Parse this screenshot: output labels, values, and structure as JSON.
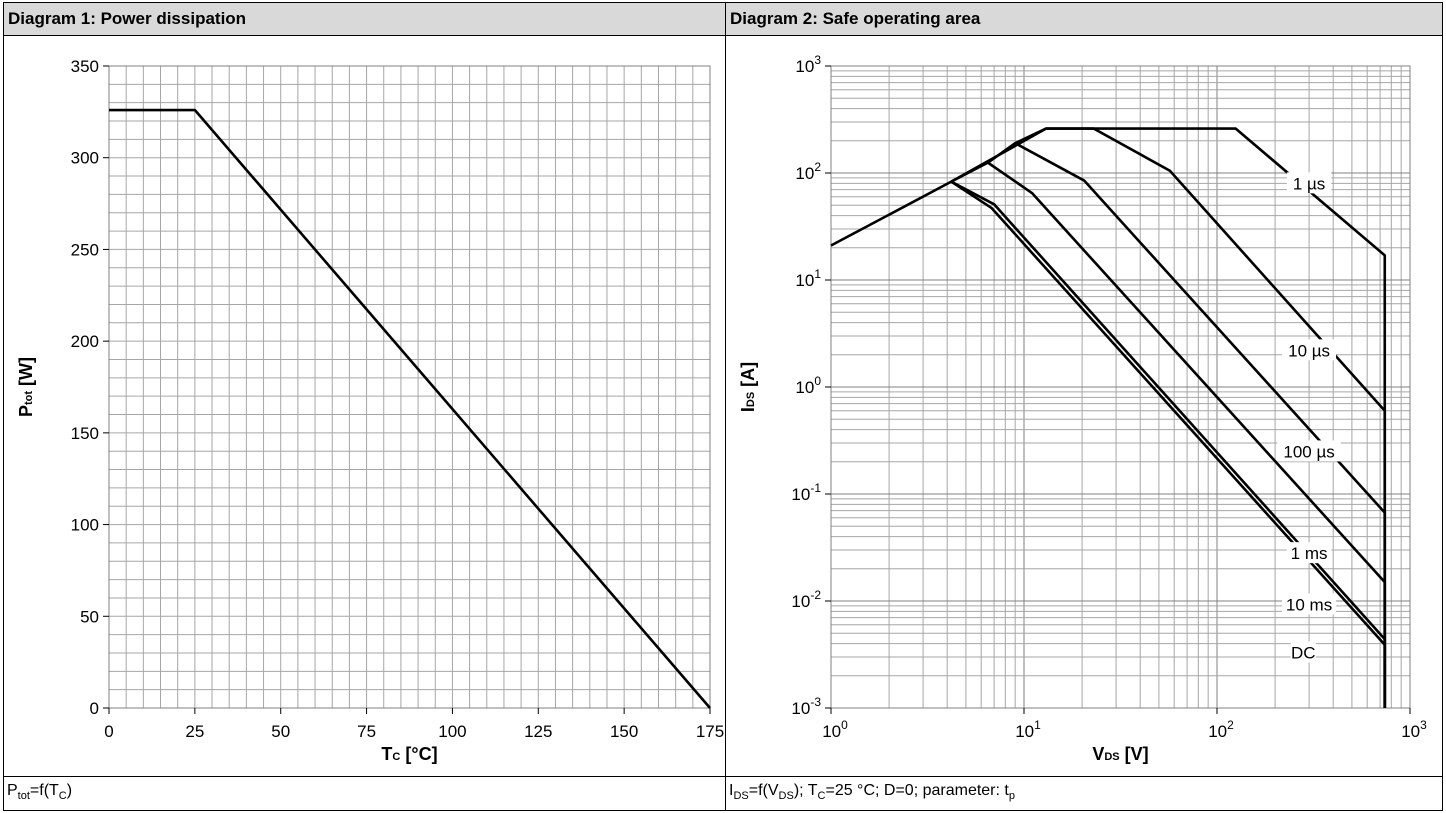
{
  "chart_data": [
    {
      "type": "line",
      "title": "Diagram 1: Power dissipation",
      "ylabel_main": "P",
      "ylabel_sub": "tot",
      "ylabel_unit": " [W]",
      "xlabel_main": "T",
      "xlabel_sub": "C",
      "xlabel_unit": " [°C]",
      "xlim": [
        0,
        175
      ],
      "ylim": [
        0,
        350
      ],
      "x_ticks": [
        0,
        25,
        50,
        75,
        100,
        125,
        150,
        175
      ],
      "y_ticks": [
        0,
        50,
        100,
        150,
        200,
        250,
        300,
        350
      ],
      "grid": true,
      "series": [
        {
          "x": [
            0,
            25,
            175
          ],
          "y": [
            326,
            326,
            0
          ]
        }
      ],
      "caption": {
        "a": "P",
        "a_sub": "tot",
        "b": "=f(T",
        "b_sub": "C",
        "c": ")"
      }
    },
    {
      "type": "line",
      "title": "Diagram 2: Safe operating area",
      "ylabel_main": "I",
      "ylabel_sub": "DS",
      "ylabel_unit": " [A]",
      "xlabel_main": "V",
      "xlabel_sub": "DS",
      "xlabel_unit": " [V]",
      "x_scale": "log",
      "y_scale": "log",
      "xlim": [
        1,
        1000
      ],
      "ylim": [
        0.001,
        1000
      ],
      "x_tick_exponents": [
        "0",
        "1",
        "2",
        "3"
      ],
      "y_tick_exponents": [
        "3",
        "2",
        "1",
        "0",
        "-1",
        "-2",
        "-3"
      ],
      "grid": true,
      "series": [
        {
          "name": "1 µs",
          "x": [
            1,
            4.2,
            13,
            125,
            740,
            740
          ],
          "y": [
            21,
            83,
            260,
            260,
            17,
            0.001
          ]
        },
        {
          "name": "10 µs",
          "x": [
            9,
            13,
            23,
            57,
            740,
            740
          ],
          "y": [
            190,
            260,
            260,
            105,
            0.6,
            0.001
          ]
        },
        {
          "name": "100 µs",
          "x": [
            6.5,
            9,
            20.5,
            740,
            740
          ],
          "y": [
            125,
            190,
            85,
            0.067,
            0.001
          ]
        },
        {
          "name": "1 ms",
          "x": [
            4.2,
            6.5,
            11,
            740,
            740
          ],
          "y": [
            83,
            125,
            65,
            0.015,
            0.001
          ]
        },
        {
          "name": "10 ms",
          "x": [
            4.2,
            7,
            740,
            740
          ],
          "y": [
            83,
            51,
            0.0044,
            0.001
          ]
        },
        {
          "name": "DC",
          "x": [
            4.2,
            6.8,
            740,
            740
          ],
          "y": [
            83,
            47,
            0.0039,
            0.001
          ]
        }
      ],
      "annotations": [
        {
          "text": "1 µs",
          "x": 300,
          "y": 80
        },
        {
          "text": "10 µs",
          "x": 300,
          "y": 2.2
        },
        {
          "text": "100 µs",
          "x": 300,
          "y": 0.25
        },
        {
          "text": "1 ms",
          "x": 300,
          "y": 0.028
        },
        {
          "text": "10 ms",
          "x": 300,
          "y": 0.0093
        },
        {
          "text": "DC",
          "x": 280,
          "y": 0.0033
        }
      ],
      "caption": {
        "a": "I",
        "a_sub": "DS",
        "b": "=f(V",
        "b_sub": "DS",
        "c": "); T",
        "c_sub": "C",
        "d": "=25 °C; D=0; parameter: t",
        "d_sub": "p"
      }
    }
  ]
}
